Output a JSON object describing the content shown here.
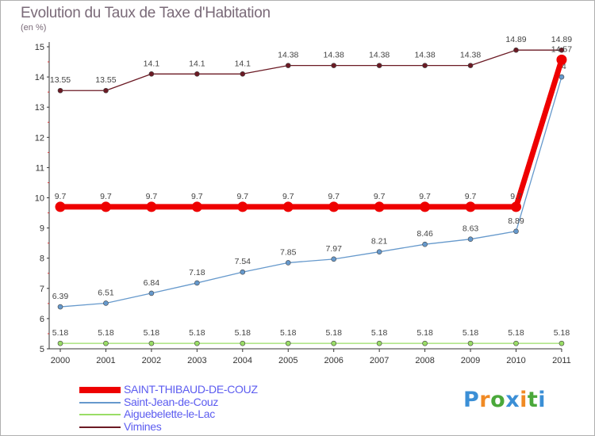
{
  "title": "Evolution du Taux de Taxe d'Habitation",
  "subtitle": "(en %)",
  "chart_data": {
    "type": "line",
    "x": [
      "2000",
      "2001",
      "2002",
      "2003",
      "2004",
      "2005",
      "2006",
      "2007",
      "2008",
      "2009",
      "2010",
      "2011"
    ],
    "yticks": [
      "5",
      "6",
      "7",
      "8",
      "9",
      "10",
      "11",
      "12",
      "13",
      "14",
      "15"
    ],
    "ylim": [
      5,
      15
    ],
    "grid": false,
    "legend_position": "bottom-left",
    "series": [
      {
        "name": "Vimines",
        "color": "#6b1a24",
        "values": [
          13.55,
          13.55,
          14.1,
          14.1,
          14.1,
          14.38,
          14.38,
          14.38,
          14.38,
          14.38,
          14.89,
          14.89
        ],
        "labels": [
          "13.55",
          "13.55",
          "14.1",
          "14.1",
          "14.1",
          "14.38",
          "14.38",
          "14.38",
          "14.38",
          "14.38",
          "14.89",
          "14.89"
        ]
      },
      {
        "name": "Saint-Jean-de-Couz",
        "color": "#6699cc",
        "values": [
          6.39,
          6.51,
          6.84,
          7.18,
          7.54,
          7.85,
          7.97,
          8.21,
          8.46,
          8.63,
          8.89,
          14
        ],
        "labels": [
          "6.39",
          "6.51",
          "6.84",
          "7.18",
          "7.54",
          "7.85",
          "7.97",
          "8.21",
          "8.46",
          "8.63",
          "8.89",
          "14"
        ]
      },
      {
        "name": "Aiguebelette-le-Lac",
        "color": "#99dd66",
        "values": [
          5.18,
          5.18,
          5.18,
          5.18,
          5.18,
          5.18,
          5.18,
          5.18,
          5.18,
          5.18,
          5.18,
          5.18
        ],
        "labels": [
          "5.18",
          "5.18",
          "5.18",
          "5.18",
          "5.18",
          "5.18",
          "5.18",
          "5.18",
          "5.18",
          "5.18",
          "5.18",
          "5.18"
        ]
      },
      {
        "name": "SAINT-THIBAUD-DE-COUZ",
        "color": "#ee0000",
        "values": [
          9.7,
          9.7,
          9.7,
          9.7,
          9.7,
          9.7,
          9.7,
          9.7,
          9.7,
          9.7,
          9.7,
          14.57
        ],
        "labels": [
          "9.7",
          "9.7",
          "9.7",
          "9.7",
          "9.7",
          "9.7",
          "9.7",
          "9.7",
          "9.7",
          "9.7",
          "9.7",
          "14.57"
        ]
      }
    ],
    "legend": [
      {
        "name": "SAINT-THIBAUD-DE-COUZ",
        "color": "#ee0000"
      },
      {
        "name": "Saint-Jean-de-Couz",
        "color": "#6699cc"
      },
      {
        "name": "Aiguebelette-le-Lac",
        "color": "#99dd66"
      },
      {
        "name": "Vimines",
        "color": "#6b1a24"
      }
    ]
  },
  "logo": {
    "letters": [
      "P",
      "r",
      "o",
      "x",
      "i",
      "t",
      "i"
    ],
    "colors": [
      "#3b8fd6",
      "#f08a24",
      "#4aa83a",
      "#3b8fd6",
      "#f08a24",
      "#4aa83a",
      "#3b8fd6"
    ]
  }
}
